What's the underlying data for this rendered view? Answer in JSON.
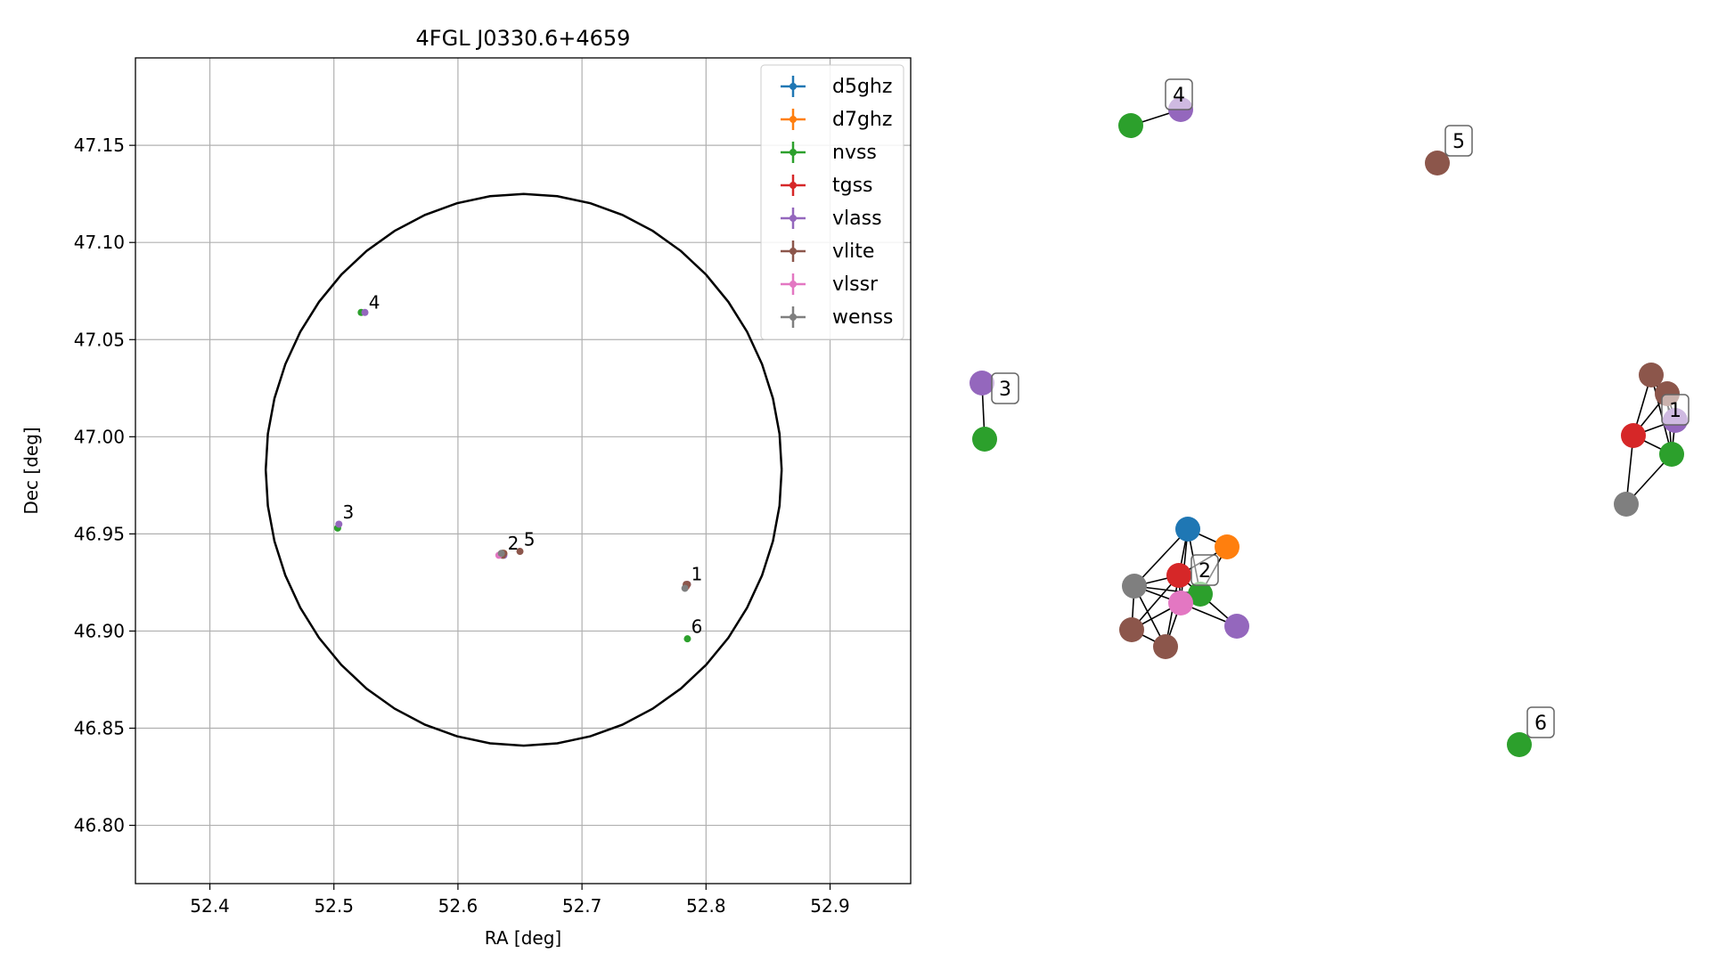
{
  "chart_data": [
    {
      "type": "scatter",
      "title": "4FGL J0330.6+4659",
      "xlabel": "RA [deg]",
      "ylabel": "Dec [deg]",
      "xlim": [
        52.34,
        52.965
      ],
      "ylim": [
        46.77,
        47.195
      ],
      "xticks": [
        52.4,
        52.5,
        52.6,
        52.7,
        52.8,
        52.9
      ],
      "xtick_labels": [
        "52.4",
        "52.5",
        "52.6",
        "52.7",
        "52.8",
        "52.9"
      ],
      "yticks": [
        46.8,
        46.85,
        46.9,
        46.95,
        47.0,
        47.05,
        47.1,
        47.15
      ],
      "ytick_labels": [
        "46.80",
        "46.85",
        "46.90",
        "46.95",
        "47.00",
        "47.05",
        "47.10",
        "47.15"
      ],
      "grid": true,
      "legend_position": "top-right",
      "ellipse": {
        "center": [
          52.653,
          46.983
        ],
        "ra_half_width": 0.208,
        "dec_half_height": 0.142
      },
      "series": [
        {
          "name": "d5ghz",
          "color": "#1f77b4",
          "points": [
            [
              52.636,
              46.94
            ]
          ]
        },
        {
          "name": "d7ghz",
          "color": "#ff7f0e",
          "points": [
            [
              52.637,
              46.94
            ]
          ]
        },
        {
          "name": "nvss",
          "color": "#2ca02c",
          "points": [
            [
              52.784,
              46.923
            ],
            [
              52.636,
              46.94
            ],
            [
              52.503,
              46.953
            ],
            [
              52.522,
              47.064
            ],
            [
              52.785,
              46.896
            ]
          ]
        },
        {
          "name": "tgss",
          "color": "#d62728",
          "points": [
            [
              52.784,
              46.923
            ],
            [
              52.636,
              46.94
            ]
          ]
        },
        {
          "name": "vlass",
          "color": "#9467bd",
          "points": [
            [
              52.785,
              46.924
            ],
            [
              52.637,
              46.939
            ],
            [
              52.504,
              46.955
            ],
            [
              52.525,
              47.064
            ]
          ]
        },
        {
          "name": "vlite",
          "color": "#8c564b",
          "points": [
            [
              52.785,
              46.924
            ],
            [
              52.784,
              46.924
            ],
            [
              52.636,
              46.939
            ],
            [
              52.637,
              46.94
            ],
            [
              52.65,
              46.941
            ]
          ]
        },
        {
          "name": "vlssr",
          "color": "#e377c2",
          "points": [
            [
              52.633,
              46.939
            ]
          ]
        },
        {
          "name": "wenss",
          "color": "#7f7f7f",
          "points": [
            [
              52.783,
              46.922
            ],
            [
              52.635,
              46.94
            ]
          ]
        }
      ],
      "annotations": [
        {
          "text": "1",
          "x": 52.788,
          "y": 46.926
        },
        {
          "text": "2",
          "x": 52.64,
          "y": 46.942
        },
        {
          "text": "5",
          "x": 52.653,
          "y": 46.944
        },
        {
          "text": "3",
          "x": 52.507,
          "y": 46.958
        },
        {
          "text": "4",
          "x": 52.528,
          "y": 47.066
        },
        {
          "text": "6",
          "x": 52.788,
          "y": 46.899
        }
      ]
    },
    {
      "type": "network",
      "node_colors": {
        "d5ghz": "#1f77b4",
        "d7ghz": "#ff7f0e",
        "nvss": "#2ca02c",
        "tgss": "#d62728",
        "vlass": "#9467bd",
        "vlite": "#8c564b",
        "vlssr": "#e377c2",
        "wenss": "#7f7f7f"
      },
      "group_labels": [
        "1",
        "2",
        "3",
        "4",
        "5",
        "6"
      ],
      "groups": [
        {
          "label": "1",
          "nodes": [
            {
              "id": "1a",
              "survey": "vlite"
            },
            {
              "id": "1b",
              "survey": "vlite"
            },
            {
              "id": "1c",
              "survey": "vlass"
            },
            {
              "id": "1d",
              "survey": "tgss"
            },
            {
              "id": "1e",
              "survey": "nvss"
            },
            {
              "id": "1f",
              "survey": "wenss"
            }
          ],
          "edges": [
            [
              "1a",
              "1b"
            ],
            [
              "1a",
              "1c"
            ],
            [
              "1a",
              "1d"
            ],
            [
              "1a",
              "1e"
            ],
            [
              "1b",
              "1c"
            ],
            [
              "1b",
              "1d"
            ],
            [
              "1b",
              "1e"
            ],
            [
              "1c",
              "1d"
            ],
            [
              "1c",
              "1e"
            ],
            [
              "1d",
              "1e"
            ],
            [
              "1d",
              "1f"
            ],
            [
              "1e",
              "1f"
            ]
          ]
        },
        {
          "label": "2",
          "nodes": [
            {
              "id": "2a",
              "survey": "d5ghz"
            },
            {
              "id": "2b",
              "survey": "d7ghz"
            },
            {
              "id": "2c",
              "survey": "tgss"
            },
            {
              "id": "2d",
              "survey": "nvss"
            },
            {
              "id": "2e",
              "survey": "wenss"
            },
            {
              "id": "2f",
              "survey": "vlssr"
            },
            {
              "id": "2g",
              "survey": "vlass"
            },
            {
              "id": "2h",
              "survey": "vlite"
            },
            {
              "id": "2i",
              "survey": "vlite"
            }
          ],
          "edges": [
            [
              "2a",
              "2b"
            ],
            [
              "2a",
              "2c"
            ],
            [
              "2a",
              "2d"
            ],
            [
              "2a",
              "2e"
            ],
            [
              "2a",
              "2f"
            ],
            [
              "2b",
              "2d"
            ],
            [
              "2b",
              "2c"
            ],
            [
              "2c",
              "2d"
            ],
            [
              "2c",
              "2e"
            ],
            [
              "2c",
              "2f"
            ],
            [
              "2c",
              "2h"
            ],
            [
              "2c",
              "2i"
            ],
            [
              "2d",
              "2f"
            ],
            [
              "2d",
              "2g"
            ],
            [
              "2d",
              "2e"
            ],
            [
              "2e",
              "2f"
            ],
            [
              "2e",
              "2h"
            ],
            [
              "2e",
              "2i"
            ],
            [
              "2f",
              "2g"
            ],
            [
              "2f",
              "2h"
            ],
            [
              "2f",
              "2i"
            ],
            [
              "2h",
              "2i"
            ]
          ]
        },
        {
          "label": "3",
          "nodes": [
            {
              "id": "3a",
              "survey": "vlass"
            },
            {
              "id": "3b",
              "survey": "nvss"
            }
          ],
          "edges": [
            [
              "3a",
              "3b"
            ]
          ]
        },
        {
          "label": "4",
          "nodes": [
            {
              "id": "4a",
              "survey": "nvss"
            },
            {
              "id": "4b",
              "survey": "vlass"
            }
          ],
          "edges": [
            [
              "4a",
              "4b"
            ]
          ]
        },
        {
          "label": "5",
          "nodes": [
            {
              "id": "5a",
              "survey": "vlite"
            }
          ],
          "edges": []
        },
        {
          "label": "6",
          "nodes": [
            {
              "id": "6a",
              "survey": "nvss"
            }
          ],
          "edges": []
        }
      ]
    }
  ]
}
